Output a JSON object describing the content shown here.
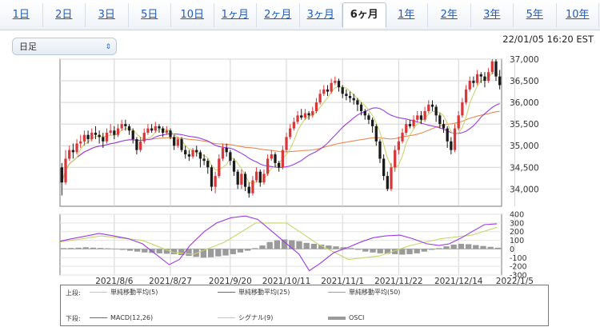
{
  "tabs": [
    "1日",
    "2日",
    "3日",
    "5日",
    "10日",
    "1ヶ月",
    "2ヶ月",
    "3ヶ月",
    "6ヶ月",
    "1年",
    "2年",
    "3年",
    "5年",
    "10年"
  ],
  "active_tab": 8,
  "period_select": {
    "value": "日足"
  },
  "timestamp": "22/01/05 16:20 EST",
  "colors": {
    "up": "#d9383a",
    "down": "#1a1a1a",
    "sma5": "#c9d56a",
    "sma25": "#9b3be0",
    "sma50": "#e88a4f",
    "macd": "#9b3be0",
    "signal": "#c9d56a",
    "osci": "#9a9a9a"
  },
  "legend": {
    "upper_label": "上段:",
    "lower_label": "下段:",
    "upper_items": [
      "単純移動平均(5)",
      "単純移動平均(25)",
      "単純移動平均(50)"
    ],
    "lower_items": [
      "MACD(12,26)",
      "シグナル(9)",
      "OSCI"
    ]
  },
  "chart_data": [
    {
      "type": "candlestick",
      "ylim": [
        33600,
        37000
      ],
      "yticks": [
        "34,000",
        "34,500",
        "35,000",
        "35,500",
        "36,000",
        "36,500",
        "37,000"
      ],
      "ytick_values": [
        34000,
        34500,
        35000,
        35500,
        36000,
        36500,
        37000
      ],
      "xtick_labels": [
        "2021/8/6",
        "2021/8/27",
        "2021/9/20",
        "2021/10/11",
        "2021/11/1",
        "2021/11/22",
        "2021/12/14",
        "2022/1/5"
      ],
      "xtick_index": [
        14,
        29,
        45,
        60,
        75,
        90,
        106,
        121
      ],
      "grid": true,
      "candles": [
        [
          34500,
          34150,
          34600,
          33850
        ],
        [
          34150,
          34700,
          34900,
          34100
        ],
        [
          34700,
          34900,
          35000,
          34650
        ],
        [
          34900,
          34850,
          35050,
          34700
        ],
        [
          34850,
          35050,
          35150,
          34800
        ],
        [
          35050,
          35100,
          35250,
          34950
        ],
        [
          35100,
          35250,
          35350,
          35000
        ],
        [
          35250,
          35150,
          35350,
          35050
        ],
        [
          35150,
          35300,
          35400,
          35100
        ],
        [
          35300,
          35250,
          35450,
          35150
        ],
        [
          35250,
          35200,
          35350,
          35050
        ],
        [
          35200,
          35100,
          35300,
          34950
        ],
        [
          35100,
          35300,
          35400,
          35050
        ],
        [
          35300,
          35350,
          35500,
          35250
        ],
        [
          35350,
          35250,
          35450,
          35150
        ],
        [
          35250,
          35400,
          35500,
          35200
        ],
        [
          35400,
          35500,
          35600,
          35350
        ],
        [
          35500,
          35450,
          35600,
          35350
        ],
        [
          35450,
          35350,
          35500,
          35250
        ],
        [
          35350,
          35150,
          35400,
          35050
        ],
        [
          35150,
          34900,
          35200,
          34800
        ],
        [
          34900,
          35100,
          35200,
          34850
        ],
        [
          35100,
          35300,
          35400,
          35050
        ],
        [
          35300,
          35400,
          35500,
          35250
        ],
        [
          35400,
          35350,
          35500,
          35300
        ],
        [
          35350,
          35450,
          35550,
          35300
        ],
        [
          35450,
          35400,
          35500,
          35300
        ],
        [
          35400,
          35300,
          35450,
          35200
        ],
        [
          35300,
          35350,
          35450,
          35250
        ],
        [
          35350,
          35200,
          35400,
          35150
        ],
        [
          35200,
          35000,
          35250,
          34900
        ],
        [
          35000,
          35150,
          35200,
          34950
        ],
        [
          35150,
          34900,
          35200,
          34850
        ],
        [
          34900,
          34800,
          35000,
          34700
        ],
        [
          34800,
          34750,
          34900,
          34650
        ],
        [
          34750,
          34900,
          34950,
          34700
        ],
        [
          34900,
          34850,
          35000,
          34750
        ],
        [
          34850,
          34700,
          34900,
          34500
        ],
        [
          34700,
          34650,
          34800,
          34550
        ],
        [
          34650,
          34500,
          34700,
          34350
        ],
        [
          34500,
          34050,
          34550,
          33950
        ],
        [
          34050,
          34300,
          34400,
          33900
        ],
        [
          34300,
          34700,
          34800,
          34250
        ],
        [
          34700,
          34950,
          35050,
          34650
        ],
        [
          34950,
          34850,
          35050,
          34750
        ],
        [
          34850,
          34650,
          34900,
          34550
        ],
        [
          34650,
          34400,
          34700,
          34300
        ],
        [
          34400,
          34100,
          34450,
          34000
        ],
        [
          34100,
          34350,
          34450,
          34000
        ],
        [
          34350,
          34050,
          34400,
          33950
        ],
        [
          34050,
          33900,
          34150,
          33800
        ],
        [
          33900,
          34200,
          34300,
          33850
        ],
        [
          34200,
          34400,
          34500,
          34150
        ],
        [
          34400,
          34150,
          34450,
          34050
        ],
        [
          34150,
          34350,
          34450,
          34100
        ],
        [
          34350,
          34700,
          34800,
          34300
        ],
        [
          34700,
          34800,
          34900,
          34650
        ],
        [
          34800,
          34600,
          34850,
          34500
        ],
        [
          34600,
          34500,
          34650,
          34400
        ],
        [
          34500,
          34900,
          35000,
          34450
        ],
        [
          34900,
          35200,
          35300,
          34850
        ],
        [
          35200,
          35400,
          35500,
          35150
        ],
        [
          35400,
          35550,
          35650,
          35350
        ],
        [
          35550,
          35700,
          35800,
          35500
        ],
        [
          35700,
          35650,
          35850,
          35600
        ],
        [
          35650,
          35750,
          35850,
          35600
        ],
        [
          35750,
          35700,
          35800,
          35600
        ],
        [
          35700,
          35800,
          35900,
          35650
        ],
        [
          35800,
          36000,
          36100,
          35750
        ],
        [
          36000,
          36200,
          36300,
          35950
        ],
        [
          36200,
          36300,
          36400,
          36150
        ],
        [
          36300,
          36250,
          36400,
          36150
        ],
        [
          36250,
          36450,
          36550,
          36200
        ],
        [
          36450,
          36500,
          36600,
          36400
        ],
        [
          36500,
          36350,
          36550,
          36250
        ],
        [
          36350,
          36200,
          36400,
          36100
        ],
        [
          36200,
          36150,
          36300,
          36050
        ],
        [
          36150,
          36100,
          36250,
          36000
        ],
        [
          36100,
          36050,
          36200,
          35950
        ],
        [
          36050,
          35950,
          36100,
          35800
        ],
        [
          35950,
          35800,
          36000,
          35700
        ],
        [
          35800,
          35700,
          35850,
          35600
        ],
        [
          35700,
          35600,
          35750,
          35500
        ],
        [
          35600,
          35450,
          35650,
          35300
        ],
        [
          35450,
          35100,
          35500,
          35000
        ],
        [
          35100,
          34700,
          35150,
          34600
        ],
        [
          34700,
          34300,
          34800,
          34200
        ],
        [
          34300,
          34000,
          34400,
          33950
        ],
        [
          34000,
          34500,
          34600,
          33950
        ],
        [
          34500,
          34900,
          35000,
          34400
        ],
        [
          34900,
          35100,
          35200,
          34800
        ],
        [
          35100,
          35300,
          35400,
          35050
        ],
        [
          35300,
          35500,
          35600,
          35250
        ],
        [
          35500,
          35450,
          35600,
          35400
        ],
        [
          35450,
          35600,
          35700,
          35400
        ],
        [
          35600,
          35700,
          35800,
          35550
        ],
        [
          35700,
          35600,
          35800,
          35500
        ],
        [
          35600,
          35800,
          35900,
          35550
        ],
        [
          35800,
          35950,
          36050,
          35750
        ],
        [
          35950,
          35900,
          36050,
          35800
        ],
        [
          35900,
          35700,
          35950,
          35550
        ],
        [
          35700,
          35500,
          35750,
          35400
        ],
        [
          35500,
          35400,
          35600,
          35300
        ],
        [
          35400,
          35100,
          35450,
          34950
        ],
        [
          35100,
          34900,
          35200,
          34800
        ],
        [
          34900,
          35400,
          35500,
          34850
        ],
        [
          35400,
          35700,
          35800,
          35350
        ],
        [
          35700,
          36000,
          36100,
          35650
        ],
        [
          36000,
          36300,
          36400,
          35950
        ],
        [
          36300,
          36500,
          36600,
          36250
        ],
        [
          36500,
          36450,
          36600,
          36350
        ],
        [
          36450,
          36650,
          36750,
          36400
        ],
        [
          36650,
          36600,
          36700,
          36450
        ],
        [
          36600,
          36500,
          36700,
          36350
        ],
        [
          36500,
          36700,
          36800,
          36450
        ],
        [
          36700,
          36950,
          37000,
          36650
        ],
        [
          36950,
          36600,
          37000,
          36500
        ],
        [
          36600,
          36400,
          36750,
          36300
        ]
      ]
    },
    {
      "type": "macd",
      "ylim": [
        -300,
        400
      ],
      "yticks": [
        "-300",
        "-200",
        "-100",
        "0",
        "100",
        "200",
        "300",
        "400"
      ],
      "ytick_values": [
        -300,
        -200,
        -100,
        0,
        100,
        200,
        300,
        400
      ],
      "macd_points": [
        [
          0,
          90
        ],
        [
          6,
          120
        ],
        [
          13,
          150
        ],
        [
          19,
          180
        ],
        [
          26,
          150
        ],
        [
          33,
          120
        ],
        [
          40,
          60
        ],
        [
          46,
          -50
        ],
        [
          53,
          -180
        ],
        [
          58,
          -120
        ],
        [
          63,
          40
        ],
        [
          70,
          200
        ],
        [
          76,
          300
        ],
        [
          83,
          360
        ],
        [
          90,
          380
        ],
        [
          96,
          340
        ],
        [
          103,
          200
        ],
        [
          110,
          60
        ],
        [
          116,
          -60
        ],
        [
          121,
          -250
        ],
        [
          126,
          -170
        ],
        [
          133,
          -40
        ],
        [
          140,
          20
        ],
        [
          146,
          80
        ],
        [
          152,
          130
        ],
        [
          158,
          150
        ],
        [
          165,
          160
        ],
        [
          171,
          120
        ],
        [
          178,
          60
        ],
        [
          184,
          40
        ],
        [
          189,
          60
        ],
        [
          195,
          130
        ],
        [
          200,
          200
        ],
        [
          206,
          280
        ],
        [
          212,
          290
        ]
      ],
      "signal_points": [
        [
          0,
          80
        ],
        [
          20,
          150
        ],
        [
          40,
          100
        ],
        [
          55,
          -40
        ],
        [
          65,
          -60
        ],
        [
          80,
          80
        ],
        [
          95,
          300
        ],
        [
          110,
          300
        ],
        [
          125,
          60
        ],
        [
          140,
          -120
        ],
        [
          155,
          -80
        ],
        [
          170,
          40
        ],
        [
          185,
          120
        ],
        [
          200,
          160
        ],
        [
          212,
          250
        ]
      ],
      "osci_values": [
        10,
        12,
        15,
        20,
        15,
        12,
        8,
        -5,
        -10,
        -20,
        -30,
        -40,
        -45,
        -50,
        -55,
        -60,
        -70,
        -80,
        -90,
        -100,
        -95,
        -85,
        -75,
        -60,
        -40,
        -20,
        10,
        40,
        80,
        100,
        110,
        100,
        90,
        70,
        60,
        50,
        40,
        30,
        20,
        10,
        -10,
        -30,
        -40,
        -50,
        -55,
        -60,
        -65,
        -60,
        -50,
        -30,
        -10,
        10,
        30,
        50,
        60,
        55,
        45,
        35,
        25,
        15
      ]
    }
  ]
}
